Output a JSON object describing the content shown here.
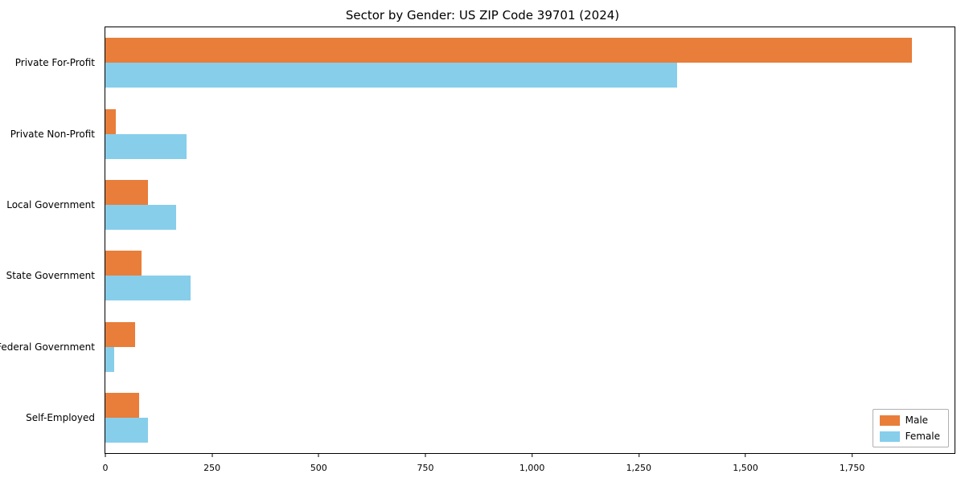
{
  "chart_data": {
    "type": "bar",
    "orientation": "horizontal",
    "title": "Sector by Gender: US ZIP Code 39701 (2024)",
    "categories": [
      "Private For-Profit",
      "Private Non-Profit",
      "Local Government",
      "State Government",
      "Federal Government",
      "Self-Employed"
    ],
    "series": [
      {
        "name": "Male",
        "color": "#e87e3a",
        "values": [
          1890,
          25,
          100,
          85,
          70,
          80
        ]
      },
      {
        "name": "Female",
        "color": "#87ceeb",
        "values": [
          1340,
          190,
          165,
          200,
          20,
          100
        ]
      }
    ],
    "xlim": [
      0,
      1990
    ],
    "xticks": [
      0,
      250,
      500,
      750,
      1000,
      1250,
      1500,
      1750
    ],
    "xtick_labels": [
      "0",
      "250",
      "500",
      "750",
      "1,000",
      "1,250",
      "1,500",
      "1,750"
    ],
    "xlabel": "",
    "ylabel": "",
    "grid": false,
    "legend_position": "lower right",
    "legend_entries": [
      "Male",
      "Female"
    ]
  }
}
